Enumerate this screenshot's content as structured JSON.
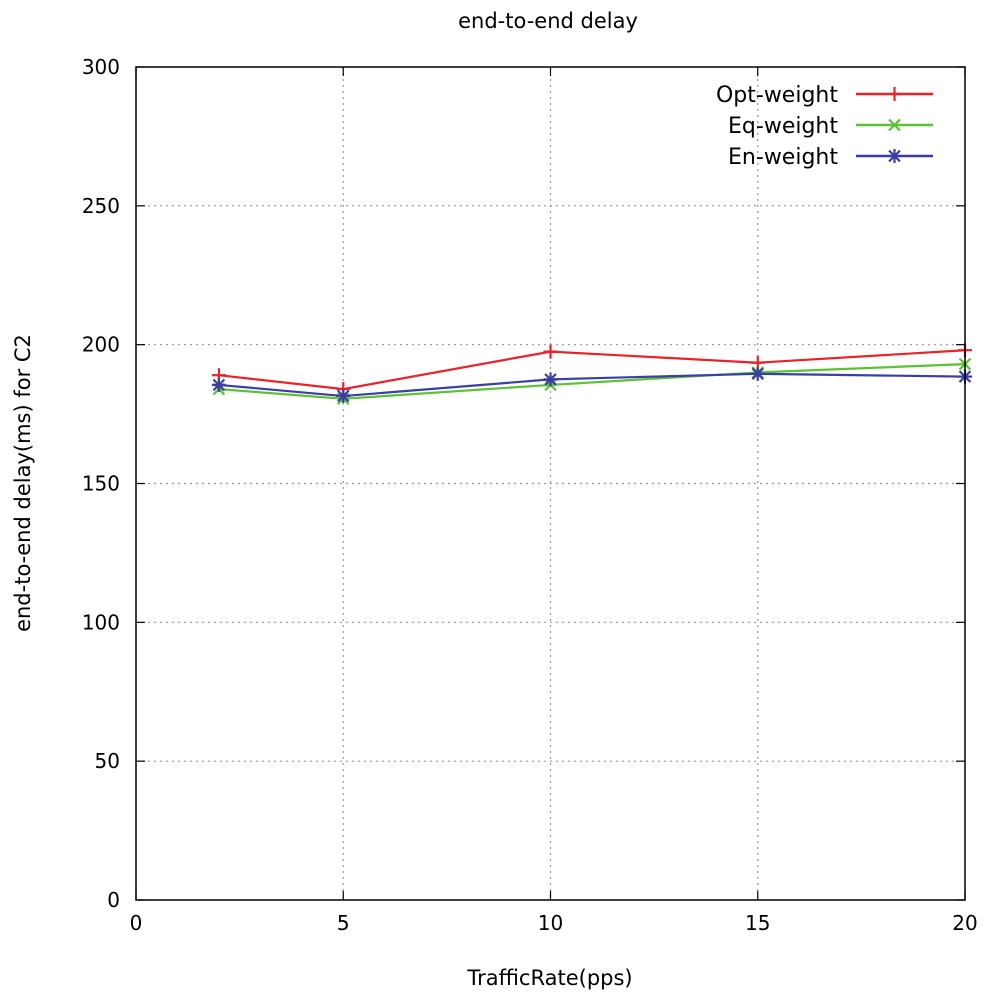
{
  "chart_data": {
    "type": "line",
    "title": "end-to-end delay",
    "xlabel": "TrafficRate(pps)",
    "ylabel": "end-to-end delay(ms)  for C2",
    "xlim": [
      0,
      20
    ],
    "ylim": [
      0,
      300
    ],
    "xticks": [
      0,
      5,
      10,
      15,
      20
    ],
    "yticks": [
      0,
      50,
      100,
      150,
      200,
      250,
      300
    ],
    "grid": true,
    "legend_position": "top-right",
    "x": [
      2,
      5,
      10,
      15,
      20
    ],
    "series": [
      {
        "name": "Opt-weight",
        "values": [
          189,
          184,
          197.5,
          193.5,
          198
        ],
        "color": "#e8232a",
        "marker": "plus"
      },
      {
        "name": "Eq-weight",
        "values": [
          184,
          180.5,
          185.5,
          190,
          193
        ],
        "color": "#5cc234",
        "marker": "cross"
      },
      {
        "name": "En-weight",
        "values": [
          185.5,
          181.5,
          187.5,
          189.5,
          188.5
        ],
        "color": "#3a3fa3",
        "marker": "star"
      }
    ]
  }
}
